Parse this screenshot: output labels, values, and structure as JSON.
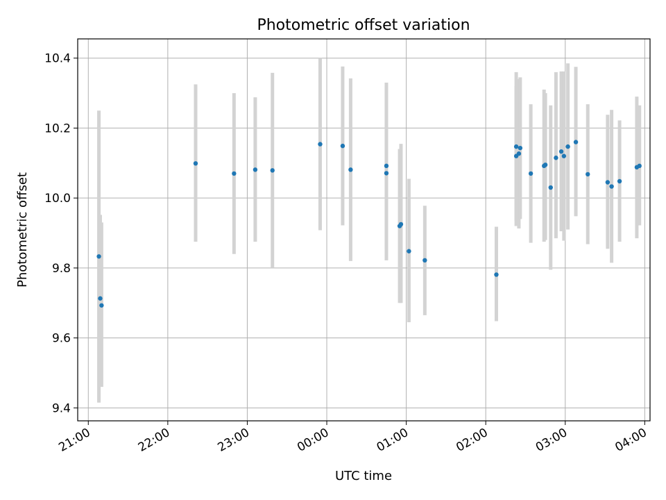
{
  "chart_data": {
    "type": "scatter",
    "title": "Photometric offset variation",
    "xlabel": "UTC time",
    "ylabel": "Photometric offset",
    "x_is_time": true,
    "xlim": [
      "20:52",
      "04:04"
    ],
    "ylim": [
      9.363,
      10.455
    ],
    "x_ticks": [
      "21:00",
      "22:00",
      "23:00",
      "00:00",
      "01:00",
      "02:00",
      "03:00",
      "04:00"
    ],
    "y_ticks": [
      "9.4",
      "9.6",
      "9.8",
      "10.0",
      "10.2",
      "10.4"
    ],
    "grid": true,
    "colors": {
      "point": "#1f77b4",
      "errorbar": "#d3d3d3",
      "grid": "#b0b0b0"
    },
    "points": [
      {
        "x": "21:08",
        "y": 9.833,
        "low": 9.415,
        "high": 10.25
      },
      {
        "x": "21:09",
        "y": 9.713,
        "low": 9.475,
        "high": 9.952
      },
      {
        "x": "21:10",
        "y": 9.693,
        "low": 9.46,
        "high": 9.93
      },
      {
        "x": "22:21",
        "y": 10.099,
        "low": 9.875,
        "high": 10.325
      },
      {
        "x": "22:50",
        "y": 10.07,
        "low": 9.84,
        "high": 10.3
      },
      {
        "x": "23:06",
        "y": 10.081,
        "low": 9.875,
        "high": 10.288
      },
      {
        "x": "23:19",
        "y": 10.079,
        "low": 9.8,
        "high": 10.358
      },
      {
        "x": "23:55",
        "y": 10.154,
        "low": 9.908,
        "high": 10.4
      },
      {
        "x": "00:12",
        "y": 10.149,
        "low": 9.922,
        "high": 10.376
      },
      {
        "x": "00:18",
        "y": 10.081,
        "low": 9.82,
        "high": 10.342
      },
      {
        "x": "00:45",
        "y": 10.092,
        "low": 9.855,
        "high": 10.33
      },
      {
        "x": "00:45",
        "y": 10.071,
        "low": 9.822,
        "high": 10.32
      },
      {
        "x": "00:55",
        "y": 9.92,
        "low": 9.7,
        "high": 10.14
      },
      {
        "x": "00:56",
        "y": 9.925,
        "low": 9.7,
        "high": 10.155
      },
      {
        "x": "01:02",
        "y": 9.848,
        "low": 9.645,
        "high": 10.055
      },
      {
        "x": "01:14",
        "y": 9.822,
        "low": 9.665,
        "high": 9.978
      },
      {
        "x": "02:08",
        "y": 9.781,
        "low": 9.648,
        "high": 9.918
      },
      {
        "x": "02:23",
        "y": 10.147,
        "low": 9.935,
        "high": 10.36
      },
      {
        "x": "02:23",
        "y": 10.12,
        "low": 9.92,
        "high": 10.32
      },
      {
        "x": "02:25",
        "y": 10.127,
        "low": 9.913,
        "high": 10.34
      },
      {
        "x": "02:26",
        "y": 10.143,
        "low": 9.94,
        "high": 10.345
      },
      {
        "x": "02:34",
        "y": 10.07,
        "low": 9.872,
        "high": 10.268
      },
      {
        "x": "02:44",
        "y": 10.092,
        "low": 9.875,
        "high": 10.31
      },
      {
        "x": "02:45",
        "y": 10.095,
        "low": 9.88,
        "high": 10.3
      },
      {
        "x": "02:49",
        "y": 10.03,
        "low": 9.795,
        "high": 10.265
      },
      {
        "x": "02:53",
        "y": 10.115,
        "low": 9.885,
        "high": 10.36
      },
      {
        "x": "02:57",
        "y": 10.133,
        "low": 9.905,
        "high": 10.362
      },
      {
        "x": "02:59",
        "y": 10.12,
        "low": 9.878,
        "high": 10.362
      },
      {
        "x": "03:02",
        "y": 10.147,
        "low": 9.91,
        "high": 10.385
      },
      {
        "x": "03:08",
        "y": 10.16,
        "low": 9.948,
        "high": 10.375
      },
      {
        "x": "03:17",
        "y": 10.068,
        "low": 9.868,
        "high": 10.268
      },
      {
        "x": "03:32",
        "y": 10.045,
        "low": 9.855,
        "high": 10.238
      },
      {
        "x": "03:35",
        "y": 10.033,
        "low": 9.815,
        "high": 10.252
      },
      {
        "x": "03:41",
        "y": 10.048,
        "low": 9.875,
        "high": 10.222
      },
      {
        "x": "03:54",
        "y": 10.088,
        "low": 9.885,
        "high": 10.29
      },
      {
        "x": "03:56",
        "y": 10.092,
        "low": 9.922,
        "high": 10.265
      }
    ]
  }
}
